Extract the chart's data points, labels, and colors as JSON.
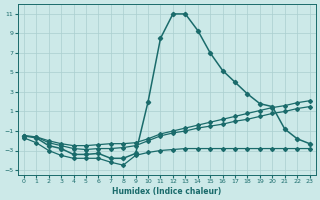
{
  "xlabel": "Humidex (Indice chaleur)",
  "xlim": [
    -0.5,
    23.5
  ],
  "ylim": [
    -5.5,
    12
  ],
  "yticks": [
    -5,
    -3,
    -1,
    1,
    3,
    5,
    7,
    9,
    11
  ],
  "xticks": [
    0,
    1,
    2,
    3,
    4,
    5,
    6,
    7,
    8,
    9,
    10,
    11,
    12,
    13,
    14,
    15,
    16,
    17,
    18,
    19,
    20,
    21,
    22,
    23
  ],
  "bg_color": "#cce9e8",
  "grid_color": "#aacfcf",
  "line_color": "#1a6b6b",
  "line_main_x": [
    0,
    1,
    2,
    3,
    4,
    5,
    6,
    7,
    8,
    9,
    10,
    11,
    12,
    13,
    14,
    15,
    16,
    17,
    18,
    19,
    20,
    21,
    22,
    23
  ],
  "line_main_y": [
    -1.5,
    -1.7,
    -2.5,
    -2.8,
    -3.4,
    -3.4,
    -3.3,
    -3.8,
    -3.8,
    -3.3,
    2.0,
    8.5,
    11.0,
    11.0,
    9.3,
    7.0,
    5.2,
    4.0,
    2.8,
    1.8,
    1.5,
    -0.8,
    -1.8,
    -2.3
  ],
  "line_rise_x": [
    0,
    1,
    2,
    3,
    4,
    5,
    6,
    7,
    8,
    9,
    10,
    11,
    12,
    13,
    14,
    15,
    16,
    17,
    18,
    19,
    20,
    21,
    22,
    23
  ],
  "line_rise_y": [
    -1.5,
    -1.6,
    -2.2,
    -2.5,
    -2.8,
    -2.9,
    -2.8,
    -2.8,
    -2.7,
    -2.5,
    -2.0,
    -1.5,
    -1.2,
    -1.0,
    -0.7,
    -0.5,
    -0.3,
    0.0,
    0.2,
    0.5,
    0.8,
    1.0,
    1.3,
    1.5
  ],
  "line_upper_x": [
    0,
    1,
    2,
    3,
    4,
    5,
    6,
    7,
    8,
    9,
    10,
    11,
    12,
    13,
    14,
    15,
    16,
    17,
    18,
    19,
    20,
    21,
    22,
    23
  ],
  "line_upper_y": [
    -1.5,
    -1.6,
    -2.0,
    -2.3,
    -2.5,
    -2.5,
    -2.4,
    -2.3,
    -2.3,
    -2.2,
    -1.8,
    -1.3,
    -1.0,
    -0.7,
    -0.4,
    -0.1,
    0.2,
    0.5,
    0.8,
    1.1,
    1.4,
    1.6,
    1.9,
    2.1
  ],
  "line_wavy_x": [
    0,
    1,
    2,
    3,
    4,
    5,
    6,
    7,
    8,
    9,
    10,
    11,
    12,
    13,
    14,
    15,
    16,
    17,
    18,
    19,
    20,
    21,
    22,
    23
  ],
  "line_wavy_y": [
    -1.7,
    -2.2,
    -3.0,
    -3.5,
    -3.8,
    -3.8,
    -3.8,
    -4.2,
    -4.5,
    -3.5,
    -3.2,
    -3.0,
    -2.9,
    -2.8,
    -2.8,
    -2.8,
    -2.8,
    -2.8,
    -2.8,
    -2.8,
    -2.8,
    -2.8,
    -2.8,
    -2.8
  ]
}
